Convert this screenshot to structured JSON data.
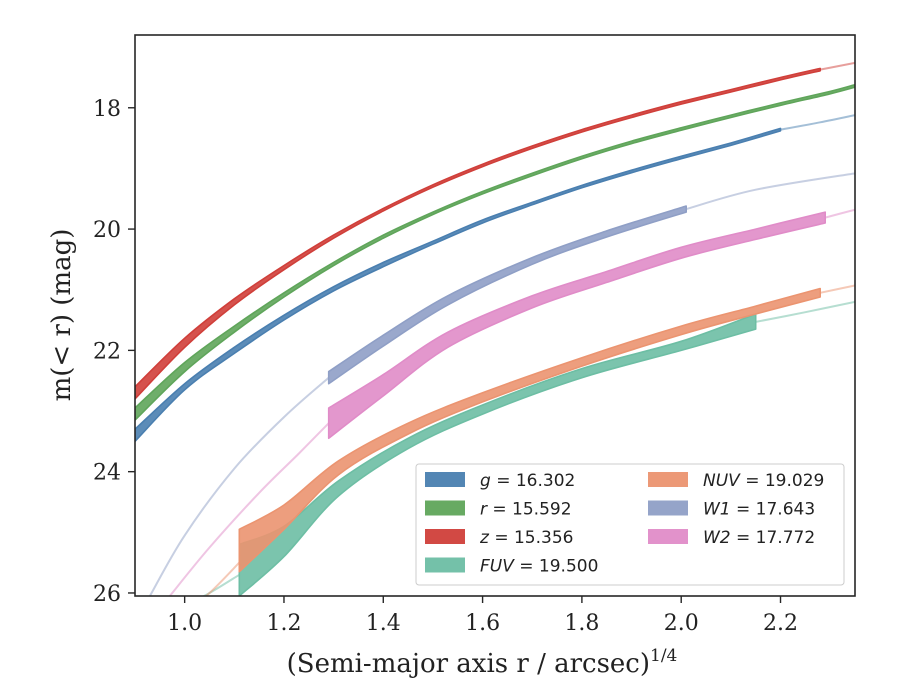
{
  "chart_data": {
    "type": "line",
    "xlabel": "(Semi-major axis r / arcsec)",
    "xlabel_exponent": "1/4",
    "ylabel": "m(< r) (mag)",
    "xlim": [
      0.9,
      2.35
    ],
    "ylim": [
      26.05,
      16.8
    ],
    "y_inverted": true,
    "grid": false,
    "legend_position": "lower-right",
    "x_ticks": [
      1.0,
      1.2,
      1.4,
      1.6,
      1.8,
      2.0,
      2.2
    ],
    "x_tick_labels": [
      "1.0",
      "1.2",
      "1.4",
      "1.6",
      "1.8",
      "2.0",
      "2.2"
    ],
    "y_ticks": [
      18,
      20,
      22,
      24,
      26
    ],
    "y_tick_labels": [
      "18",
      "20",
      "22",
      "24",
      "26"
    ],
    "series": [
      {
        "name": "g",
        "value": "16.302",
        "color": "#4a7fb0",
        "band": [
          {
            "x": 0.9,
            "lo": 23.3,
            "hi": 23.5
          },
          {
            "x": 1.0,
            "lo": 22.55,
            "hi": 22.65
          },
          {
            "x": 1.1,
            "lo": 21.95,
            "hi": 22.05
          },
          {
            "x": 1.2,
            "lo": 21.42,
            "hi": 21.5
          },
          {
            "x": 1.3,
            "lo": 20.95,
            "hi": 21.02
          },
          {
            "x": 1.4,
            "lo": 20.55,
            "hi": 20.62
          },
          {
            "x": 1.5,
            "lo": 20.2,
            "hi": 20.25
          },
          {
            "x": 1.6,
            "lo": 19.85,
            "hi": 19.9
          },
          {
            "x": 1.7,
            "lo": 19.56,
            "hi": 19.6
          },
          {
            "x": 1.8,
            "lo": 19.28,
            "hi": 19.32
          },
          {
            "x": 1.9,
            "lo": 19.03,
            "hi": 19.07
          },
          {
            "x": 2.0,
            "lo": 18.8,
            "hi": 18.84
          },
          {
            "x": 2.1,
            "lo": 18.58,
            "hi": 18.62
          },
          {
            "x": 2.2,
            "lo": 18.34,
            "hi": 18.38
          }
        ],
        "extrapolation": [
          {
            "x": 2.2,
            "y": 18.36
          },
          {
            "x": 2.28,
            "y": 18.24
          },
          {
            "x": 2.35,
            "y": 18.12
          }
        ]
      },
      {
        "name": "r",
        "value": "15.592",
        "color": "#5fa55a",
        "band": [
          {
            "x": 0.9,
            "lo": 22.95,
            "hi": 23.15
          },
          {
            "x": 1.0,
            "lo": 22.2,
            "hi": 22.35
          },
          {
            "x": 1.1,
            "lo": 21.6,
            "hi": 21.7
          },
          {
            "x": 1.2,
            "lo": 21.05,
            "hi": 21.12
          },
          {
            "x": 1.3,
            "lo": 20.55,
            "hi": 20.6
          },
          {
            "x": 1.4,
            "lo": 20.1,
            "hi": 20.15
          },
          {
            "x": 1.5,
            "lo": 19.72,
            "hi": 19.76
          },
          {
            "x": 1.6,
            "lo": 19.38,
            "hi": 19.42
          },
          {
            "x": 1.7,
            "lo": 19.08,
            "hi": 19.12
          },
          {
            "x": 1.8,
            "lo": 18.8,
            "hi": 18.84
          },
          {
            "x": 1.9,
            "lo": 18.55,
            "hi": 18.59
          },
          {
            "x": 2.0,
            "lo": 18.33,
            "hi": 18.37
          },
          {
            "x": 2.1,
            "lo": 18.12,
            "hi": 18.16
          },
          {
            "x": 2.2,
            "lo": 17.92,
            "hi": 17.96
          },
          {
            "x": 2.3,
            "lo": 17.73,
            "hi": 17.77
          },
          {
            "x": 2.35,
            "lo": 17.62,
            "hi": 17.66
          }
        ],
        "extrapolation": []
      },
      {
        "name": "z",
        "value": "15.356",
        "color": "#d03f3a",
        "band": [
          {
            "x": 0.9,
            "lo": 22.6,
            "hi": 22.8
          },
          {
            "x": 1.0,
            "lo": 21.8,
            "hi": 21.95
          },
          {
            "x": 1.1,
            "lo": 21.15,
            "hi": 21.25
          },
          {
            "x": 1.2,
            "lo": 20.6,
            "hi": 20.67
          },
          {
            "x": 1.3,
            "lo": 20.1,
            "hi": 20.15
          },
          {
            "x": 1.4,
            "lo": 19.66,
            "hi": 19.7
          },
          {
            "x": 1.5,
            "lo": 19.27,
            "hi": 19.31
          },
          {
            "x": 1.6,
            "lo": 18.93,
            "hi": 18.97
          },
          {
            "x": 1.7,
            "lo": 18.63,
            "hi": 18.67
          },
          {
            "x": 1.8,
            "lo": 18.36,
            "hi": 18.4
          },
          {
            "x": 1.9,
            "lo": 18.12,
            "hi": 18.16
          },
          {
            "x": 2.0,
            "lo": 17.9,
            "hi": 17.94
          },
          {
            "x": 2.1,
            "lo": 17.7,
            "hi": 17.74
          },
          {
            "x": 2.2,
            "lo": 17.5,
            "hi": 17.54
          },
          {
            "x": 2.28,
            "lo": 17.35,
            "hi": 17.39
          }
        ],
        "extrapolation": [
          {
            "x": 2.28,
            "y": 17.37
          },
          {
            "x": 2.35,
            "y": 17.26
          }
        ]
      },
      {
        "name": "FUV",
        "value": "19.500",
        "color": "#6dbea4",
        "band": [
          {
            "x": 1.11,
            "lo": 25.2,
            "hi": 26.05
          },
          {
            "x": 1.2,
            "lo": 24.9,
            "hi": 25.4
          },
          {
            "x": 1.31,
            "lo": 24.15,
            "hi": 24.4
          },
          {
            "x": 1.45,
            "lo": 23.45,
            "hi": 23.62
          },
          {
            "x": 1.6,
            "lo": 22.9,
            "hi": 23.05
          },
          {
            "x": 1.8,
            "lo": 22.3,
            "hi": 22.45
          },
          {
            "x": 2.0,
            "lo": 21.85,
            "hi": 22.0
          },
          {
            "x": 2.15,
            "lo": 21.4,
            "hi": 21.65
          }
        ],
        "extrapolation": [
          {
            "x": 0.96,
            "y": 26.4
          },
          {
            "x": 1.05,
            "y": 26.0
          },
          {
            "x": 1.11,
            "y": 25.7
          }
        ],
        "extrapolation_end": [
          {
            "x": 2.15,
            "y": 21.53
          },
          {
            "x": 2.25,
            "y": 21.37
          },
          {
            "x": 2.35,
            "y": 21.2
          }
        ]
      },
      {
        "name": "NUV",
        "value": "19.029",
        "color": "#eb9470",
        "band": [
          {
            "x": 1.11,
            "lo": 24.95,
            "hi": 25.65
          },
          {
            "x": 1.2,
            "lo": 24.55,
            "hi": 24.95
          },
          {
            "x": 1.31,
            "lo": 23.82,
            "hi": 24.05
          },
          {
            "x": 1.45,
            "lo": 23.2,
            "hi": 23.38
          },
          {
            "x": 1.6,
            "lo": 22.7,
            "hi": 22.85
          },
          {
            "x": 1.8,
            "lo": 22.12,
            "hi": 22.26
          },
          {
            "x": 2.0,
            "lo": 21.6,
            "hi": 21.74
          },
          {
            "x": 2.15,
            "lo": 21.27,
            "hi": 21.4
          },
          {
            "x": 2.28,
            "lo": 20.98,
            "hi": 21.12
          }
        ],
        "extrapolation": [
          {
            "x": 0.99,
            "y": 26.4
          },
          {
            "x": 1.05,
            "y": 26.0
          },
          {
            "x": 1.11,
            "y": 25.5
          }
        ],
        "extrapolation_end": [
          {
            "x": 2.28,
            "y": 21.05
          },
          {
            "x": 2.35,
            "y": 20.93
          }
        ]
      },
      {
        "name": "W1",
        "value": "17.643",
        "color": "#8f9fc6",
        "band": [
          {
            "x": 1.29,
            "lo": 22.35,
            "hi": 22.55
          },
          {
            "x": 1.4,
            "lo": 21.75,
            "hi": 21.93
          },
          {
            "x": 1.53,
            "lo": 21.1,
            "hi": 21.25
          },
          {
            "x": 1.7,
            "lo": 20.47,
            "hi": 20.58
          },
          {
            "x": 1.85,
            "lo": 20.03,
            "hi": 20.13
          },
          {
            "x": 2.01,
            "lo": 19.62,
            "hi": 19.72
          }
        ],
        "extrapolation": [
          {
            "x": 0.93,
            "y": 26.05
          },
          {
            "x": 1.0,
            "y": 25.05
          },
          {
            "x": 1.1,
            "y": 23.95
          },
          {
            "x": 1.2,
            "y": 23.1
          },
          {
            "x": 1.29,
            "y": 22.45
          }
        ],
        "extrapolation_end": [
          {
            "x": 2.01,
            "y": 19.67
          },
          {
            "x": 2.15,
            "y": 19.35
          },
          {
            "x": 2.35,
            "y": 19.08
          }
        ]
      },
      {
        "name": "W2",
        "value": "17.772",
        "color": "#e08cc8",
        "band": [
          {
            "x": 1.29,
            "lo": 22.95,
            "hi": 23.45
          },
          {
            "x": 1.4,
            "lo": 22.4,
            "hi": 22.75
          },
          {
            "x": 1.53,
            "lo": 21.7,
            "hi": 21.95
          },
          {
            "x": 1.7,
            "lo": 21.1,
            "hi": 21.3
          },
          {
            "x": 1.85,
            "lo": 20.7,
            "hi": 20.88
          },
          {
            "x": 2.0,
            "lo": 20.3,
            "hi": 20.48
          },
          {
            "x": 2.15,
            "lo": 20.0,
            "hi": 20.17
          },
          {
            "x": 2.29,
            "lo": 19.72,
            "hi": 19.9
          }
        ],
        "extrapolation": [
          {
            "x": 0.97,
            "y": 26.05
          },
          {
            "x": 1.05,
            "y": 25.25
          },
          {
            "x": 1.15,
            "y": 24.35
          },
          {
            "x": 1.23,
            "y": 23.7
          },
          {
            "x": 1.29,
            "y": 23.2
          }
        ],
        "extrapolation_end": [
          {
            "x": 2.29,
            "y": 19.81
          },
          {
            "x": 2.35,
            "y": 19.68
          }
        ]
      }
    ],
    "legend": {
      "columns": 2,
      "entries_col1": [
        "g",
        "r",
        "z",
        "FUV"
      ],
      "entries_col2": [
        "NUV",
        "W1",
        "W2"
      ]
    }
  }
}
